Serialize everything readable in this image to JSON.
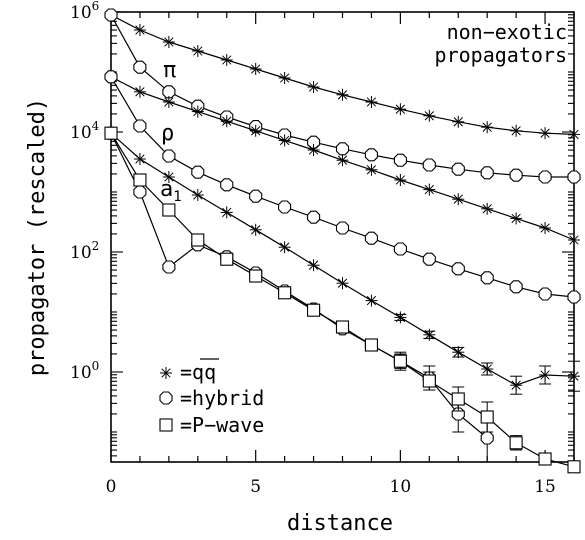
{
  "chart_data": {
    "type": "scatter",
    "title": "",
    "xlabel": "distance",
    "ylabel": "propagator (rescaled)",
    "xlim": [
      0,
      16
    ],
    "ylim_log10": [
      -1.5,
      6.0
    ],
    "yscale": "log",
    "x_ticks": [
      0,
      5,
      10,
      15
    ],
    "x_tick_labels": [
      "0",
      "5",
      "10",
      "15"
    ],
    "y_ticks_log10": [
      0,
      2,
      4,
      6
    ],
    "y_tick_labels": [
      {
        "base": "10",
        "exp": "0"
      },
      {
        "base": "10",
        "exp": "2"
      },
      {
        "base": "10",
        "exp": "4"
      },
      {
        "base": "10",
        "exp": "6"
      }
    ],
    "annotation_lines": [
      "non−exotic",
      "propagators"
    ],
    "channel_labels": [
      {
        "text": "π",
        "near_x": 2,
        "near_log10y": 5.55
      },
      {
        "text": "ρ",
        "near_x": 2,
        "near_log10y": 3.85
      },
      {
        "text": "a",
        "sub": "1",
        "near_x": 2,
        "near_log10y": 3.0
      }
    ],
    "legend": {
      "placement": "bottom-left",
      "entries": [
        {
          "marker": "star",
          "text": "=qq"
        },
        {
          "marker": "octagon",
          "text": "=hybrid"
        },
        {
          "marker": "square",
          "text": "=P−wave"
        }
      ]
    },
    "series": [
      {
        "channel": "π",
        "marker": "star",
        "line": true,
        "x": [
          0,
          1,
          2,
          3,
          4,
          5,
          6,
          7,
          8,
          9,
          10,
          11,
          12,
          13,
          14,
          15,
          16
        ],
        "log10y": [
          5.95,
          5.7,
          5.5,
          5.35,
          5.2,
          5.05,
          4.9,
          4.75,
          4.62,
          4.5,
          4.38,
          4.27,
          4.17,
          4.08,
          4.02,
          3.98,
          3.96
        ]
      },
      {
        "channel": "π",
        "marker": "octagon",
        "line": true,
        "x": [
          0,
          1,
          2,
          3,
          4,
          5,
          6,
          7,
          8,
          9,
          10,
          11,
          12,
          13,
          14,
          15,
          16
        ],
        "log10y": [
          5.95,
          5.08,
          4.67,
          4.43,
          4.25,
          4.09,
          3.95,
          3.83,
          3.72,
          3.62,
          3.53,
          3.45,
          3.38,
          3.32,
          3.28,
          3.25,
          3.25
        ]
      },
      {
        "channel": "ρ",
        "marker": "star",
        "line": true,
        "x": [
          0,
          1,
          2,
          3,
          4,
          5,
          6,
          7,
          8,
          9,
          10,
          11,
          12,
          13,
          14,
          15,
          16
        ],
        "log10y": [
          4.92,
          4.67,
          4.5,
          4.34,
          4.18,
          4.02,
          3.86,
          3.7,
          3.53,
          3.37,
          3.2,
          3.04,
          2.88,
          2.72,
          2.56,
          2.4,
          2.2
        ]
      },
      {
        "channel": "ρ",
        "marker": "octagon",
        "line": true,
        "x": [
          0,
          1,
          2,
          3,
          4,
          5,
          6,
          7,
          8,
          9,
          10,
          11,
          12,
          13,
          14,
          15,
          16
        ],
        "log10y": [
          4.92,
          4.1,
          3.6,
          3.33,
          3.12,
          2.93,
          2.75,
          2.58,
          2.4,
          2.23,
          2.05,
          1.88,
          1.72,
          1.57,
          1.42,
          1.3,
          1.25
        ]
      },
      {
        "channel": "a1",
        "marker": "star",
        "line": true,
        "x": [
          0,
          1,
          2,
          3,
          4,
          5,
          6,
          7,
          8,
          9,
          10,
          11,
          12,
          13,
          14,
          15,
          16
        ],
        "log10y": [
          3.98,
          3.55,
          3.25,
          2.95,
          2.66,
          2.37,
          2.08,
          1.78,
          1.48,
          1.19,
          0.91,
          0.62,
          0.33,
          0.05,
          -0.22,
          -0.05,
          -0.07
        ],
        "y_err_log10": [
          0,
          0,
          0,
          0,
          0,
          0,
          0,
          0,
          0,
          0,
          0.05,
          0.06,
          0.08,
          0.1,
          0.15,
          0.15,
          0.25
        ]
      },
      {
        "channel": "a1",
        "marker": "octagon",
        "line": true,
        "x": [
          0,
          1,
          2,
          3,
          4,
          5,
          6,
          7,
          8,
          9,
          10,
          11,
          12,
          13
        ],
        "log10y": [
          3.98,
          3.0,
          1.75,
          2.12,
          1.92,
          1.65,
          1.35,
          1.05,
          0.72,
          0.45,
          0.18,
          -0.1,
          -0.7,
          -1.1
        ],
        "y_err_log10": [
          0,
          0,
          0,
          0,
          0,
          0,
          0.03,
          0.05,
          0.07,
          0.1,
          0.15,
          0.2,
          0.3,
          0.4
        ]
      },
      {
        "channel": "a1",
        "marker": "square",
        "line": true,
        "x": [
          0,
          1,
          2,
          3,
          4,
          5,
          6,
          7,
          8,
          9,
          10,
          11,
          12,
          13,
          14,
          15,
          16
        ],
        "log10y": [
          3.98,
          3.2,
          2.7,
          2.2,
          1.88,
          1.6,
          1.32,
          1.03,
          0.75,
          0.45,
          0.18,
          -0.15,
          -0.45,
          -0.75,
          -1.18,
          -1.45,
          -1.58
        ],
        "y_err_log10": [
          0,
          0,
          0,
          0,
          0,
          0,
          0.04,
          0.06,
          0.08,
          0.1,
          0.12,
          0.15,
          0.2,
          0.25,
          0.12,
          0.08,
          0.08
        ]
      }
    ]
  }
}
